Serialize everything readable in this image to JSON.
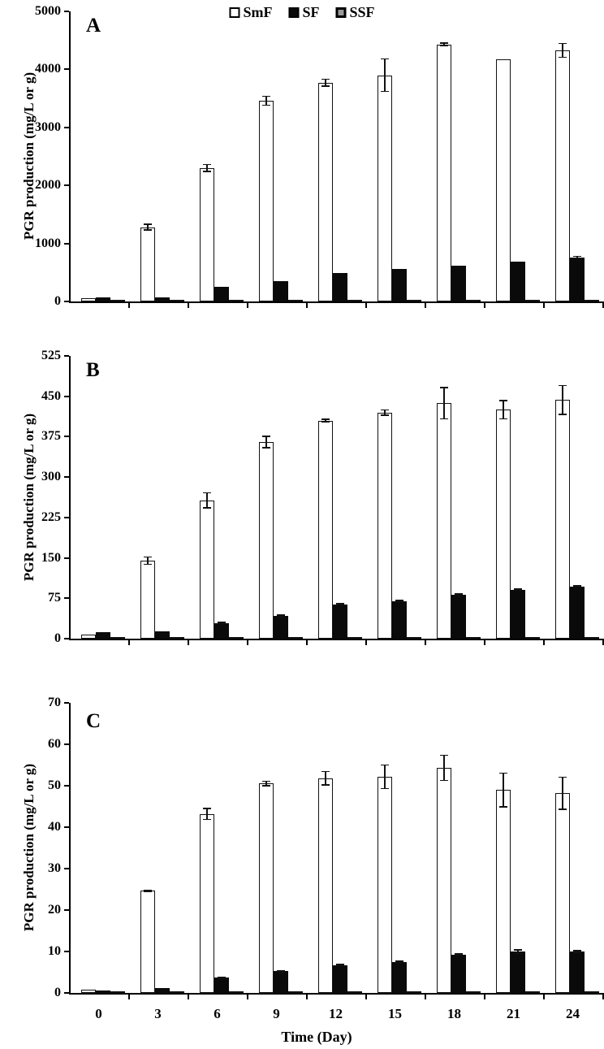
{
  "figure": {
    "xlabel": "Time (Day)",
    "ylabel": "PGR production  (mg/L or g)",
    "legend": [
      {
        "label": "SmF",
        "swatch": "white-square"
      },
      {
        "label": "SF",
        "swatch": "black-square"
      },
      {
        "label": "SSF",
        "swatch": "gray-square"
      }
    ],
    "colors": {
      "smf_fill": "#ffffff",
      "sf_fill": "#0a0a0a",
      "ssf_fill": "#6e6e6e",
      "outline": "#111111",
      "text": "#000000",
      "background": "#ffffff"
    }
  },
  "chart_data": [
    {
      "panel": "A",
      "type": "bar",
      "title": "",
      "xlabel": "Time (Day)",
      "ylabel": "PGR production  (mg/L or g)",
      "categories": [
        "0",
        "3",
        "6",
        "9",
        "12",
        "15",
        "18",
        "21",
        "24"
      ],
      "ylim": [
        0,
        5000
      ],
      "ytick_step": 1000,
      "grid": false,
      "legend_position": "top-center",
      "series": [
        {
          "name": "SmF",
          "values": [
            55,
            1280,
            2300,
            3460,
            3770,
            3900,
            4430,
            4170,
            4330
          ],
          "errors": [
            0,
            60,
            70,
            90,
            70,
            290,
            35,
            0,
            130
          ]
        },
        {
          "name": "SF",
          "values": [
            65,
            65,
            255,
            350,
            490,
            555,
            620,
            690,
            760
          ],
          "errors": [
            0,
            0,
            0,
            0,
            0,
            0,
            0,
            0,
            30
          ]
        },
        {
          "name": "SSF",
          "values": [
            22,
            22,
            25,
            25,
            25,
            25,
            25,
            25,
            25
          ],
          "errors": [
            0,
            0,
            0,
            0,
            0,
            0,
            0,
            0,
            0
          ]
        }
      ]
    },
    {
      "panel": "B",
      "type": "bar",
      "title": "",
      "xlabel": "Time (Day)",
      "ylabel": "PGR production  (mg/L or g)",
      "categories": [
        "0",
        "3",
        "6",
        "9",
        "12",
        "15",
        "18",
        "21",
        "24"
      ],
      "ylim": [
        0,
        525
      ],
      "ytick_step": 75,
      "grid": false,
      "legend_position": "top-center",
      "series": [
        {
          "name": "SmF",
          "values": [
            8,
            145,
            257,
            365,
            405,
            420,
            437,
            425,
            443
          ],
          "errors": [
            0,
            8,
            15,
            12,
            4,
            6,
            30,
            18,
            28
          ]
        },
        {
          "name": "SF",
          "values": [
            12,
            13,
            29,
            42,
            64,
            70,
            81,
            91,
            97
          ],
          "errors": [
            0,
            0,
            2,
            3,
            2,
            2,
            3,
            2,
            2
          ]
        },
        {
          "name": "SSF",
          "values": [
            2,
            2,
            3,
            3,
            3,
            3,
            3,
            3,
            3
          ],
          "errors": [
            0,
            0,
            0,
            0,
            0,
            0,
            0,
            0,
            0
          ]
        }
      ]
    },
    {
      "panel": "C",
      "type": "bar",
      "title": "",
      "xlabel": "Time (Day)",
      "ylabel": "PGR production  (mg/L or g)",
      "categories": [
        "0",
        "3",
        "6",
        "9",
        "12",
        "15",
        "18",
        "21",
        "24"
      ],
      "ylim": [
        0,
        70
      ],
      "ytick_step": 10,
      "grid": false,
      "legend_position": "top-center",
      "series": [
        {
          "name": "SmF",
          "values": [
            0.8,
            24.7,
            43.2,
            50.5,
            51.8,
            52.2,
            54.3,
            49.0,
            48.2
          ],
          "errors": [
            0,
            0.3,
            1.5,
            0.7,
            1.8,
            3.0,
            3.2,
            4.2,
            4.0
          ]
        },
        {
          "name": "SF",
          "values": [
            0.6,
            1.1,
            3.7,
            5.2,
            6.7,
            7.5,
            9.3,
            10.0,
            10.0
          ],
          "errors": [
            0,
            0,
            0.3,
            0.3,
            0.3,
            0.3,
            0.3,
            0.5,
            0.4
          ]
        },
        {
          "name": "SSF",
          "values": [
            0.2,
            0.2,
            0.3,
            0.3,
            0.3,
            0.3,
            0.3,
            0.3,
            0.3
          ],
          "errors": [
            0,
            0,
            0,
            0,
            0,
            0,
            0,
            0,
            0
          ]
        }
      ]
    }
  ]
}
